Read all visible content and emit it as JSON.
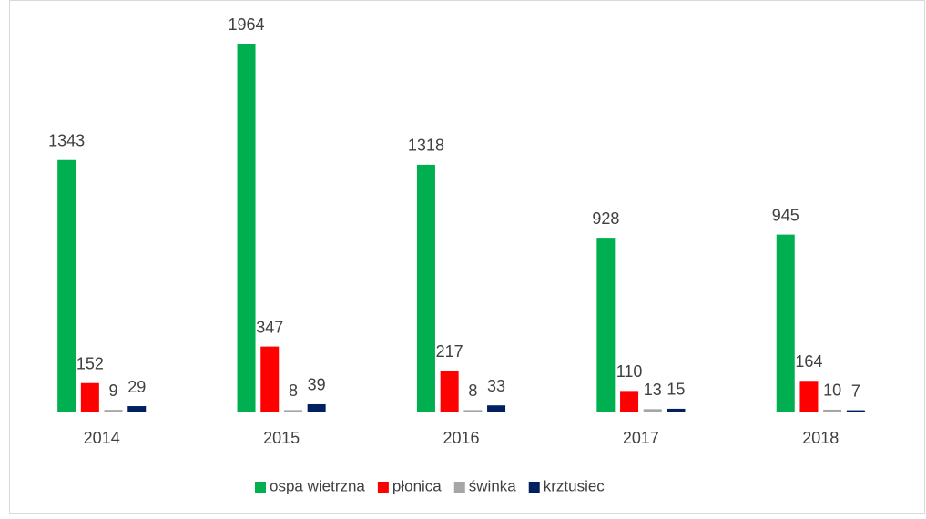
{
  "chart_data": {
    "type": "bar",
    "categories": [
      "2014",
      "2015",
      "2016",
      "2017",
      "2018"
    ],
    "series": [
      {
        "name": "ospa wietrzna",
        "color": "#00b050",
        "values": [
          1343,
          1964,
          1318,
          928,
          945
        ]
      },
      {
        "name": "płonica",
        "color": "#ff0000",
        "values": [
          152,
          347,
          217,
          110,
          164
        ]
      },
      {
        "name": "świnka",
        "color": "#a6a6a6",
        "values": [
          9,
          8,
          8,
          13,
          10
        ]
      },
      {
        "name": "krztusiec",
        "color": "#002060",
        "values": [
          29,
          39,
          33,
          15,
          7
        ]
      }
    ],
    "legend": "bottom"
  }
}
